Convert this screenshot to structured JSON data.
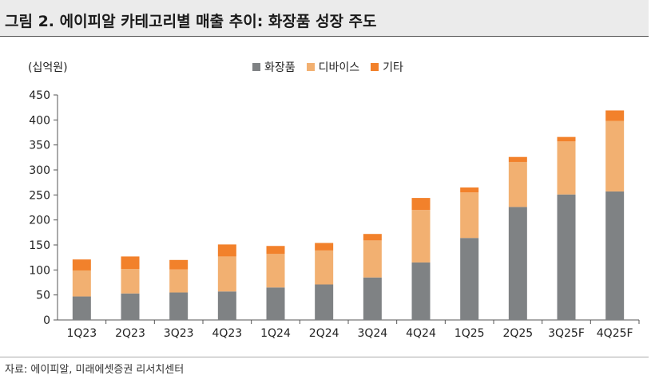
{
  "figure": {
    "title": "그림 2. 에이피알 카테고리별 매출 추이: 화장품 성장 주도",
    "source": "자료: 에이피알, 미래에셋증권 리서치센터"
  },
  "colors": {
    "cosmetics": "#7f8284",
    "devices": "#f2b071",
    "other": "#f2812b",
    "axis": "#555555",
    "title_bg": "#ebebeb"
  },
  "chart_data": {
    "type": "bar",
    "stacked": true,
    "title": "에이피알 카테고리별 매출 추이",
    "unit": "(십억원)",
    "xlabel": "",
    "ylabel": "(십억원)",
    "ylim": [
      0,
      450
    ],
    "yticks": [
      "0",
      "50",
      "100",
      "150",
      "200",
      "250",
      "300",
      "350",
      "400",
      "450"
    ],
    "grid": false,
    "legend_position": "top-center",
    "categories": [
      "1Q23",
      "2Q23",
      "3Q23",
      "4Q23",
      "1Q24",
      "2Q24",
      "3Q24",
      "4Q24",
      "1Q25",
      "2Q25",
      "3Q25F",
      "4Q25F"
    ],
    "series": [
      {
        "name": "화장품",
        "values": [
          47,
          53,
          55,
          57,
          65,
          71,
          85,
          115,
          164,
          226,
          251,
          257
        ]
      },
      {
        "name": "디바이스",
        "values": [
          52,
          49,
          46,
          70,
          67,
          68,
          74,
          105,
          91,
          90,
          106,
          141
        ]
      },
      {
        "name": "기타",
        "values": [
          22,
          25,
          19,
          24,
          16,
          15,
          13,
          24,
          10,
          10,
          9,
          21
        ]
      }
    ]
  }
}
